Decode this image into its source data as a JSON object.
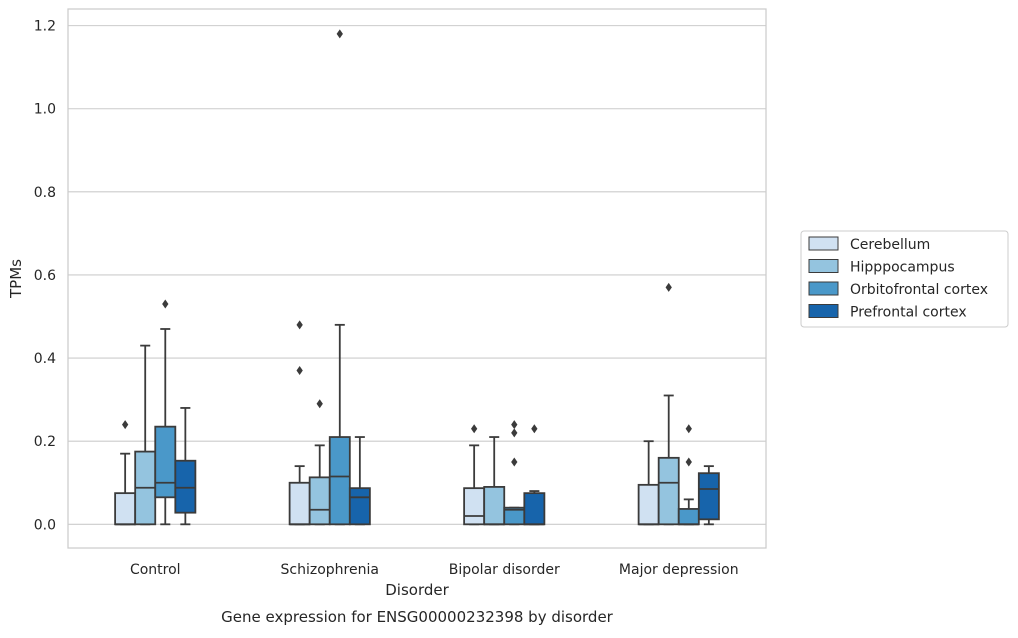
{
  "chart_data": {
    "type": "boxplot",
    "title": "",
    "caption": "Gene expression for ENSG00000232398 by disorder",
    "xlabel": "Disorder",
    "ylabel": "TPMs",
    "ylim": [
      -0.057,
      1.24
    ],
    "yticks": [
      "0.0",
      "0.2",
      "0.4",
      "0.6",
      "0.8",
      "1.0",
      "1.2"
    ],
    "ytick_values": [
      0.0,
      0.2,
      0.4,
      0.6,
      0.8,
      1.0,
      1.2
    ],
    "grid": "horizontal",
    "legend_position": "right",
    "categories": [
      "Control",
      "Schizophrenia",
      "Bipolar disorder",
      "Major depression"
    ],
    "series": [
      {
        "name": "Cerebellum",
        "color": "#d0e1f2",
        "boxes": [
          {
            "whisker_low": 0.0,
            "q1": 0.0,
            "median": 0.0,
            "q3": 0.075,
            "whisker_high": 0.17,
            "outliers": [
              0.24
            ]
          },
          {
            "whisker_low": 0.0,
            "q1": 0.0,
            "median": 0.0,
            "q3": 0.1,
            "whisker_high": 0.14,
            "outliers": [
              0.37,
              0.48
            ]
          },
          {
            "whisker_low": 0.0,
            "q1": 0.0,
            "median": 0.02,
            "q3": 0.087,
            "whisker_high": 0.19,
            "outliers": [
              0.23
            ]
          },
          {
            "whisker_low": 0.0,
            "q1": 0.0,
            "median": 0.0,
            "q3": 0.095,
            "whisker_high": 0.2,
            "outliers": []
          }
        ]
      },
      {
        "name": "Hipppocampus",
        "color": "#94c4df",
        "boxes": [
          {
            "whisker_low": 0.0,
            "q1": 0.0,
            "median": 0.088,
            "q3": 0.175,
            "whisker_high": 0.43,
            "outliers": []
          },
          {
            "whisker_low": 0.0,
            "q1": 0.0,
            "median": 0.035,
            "q3": 0.113,
            "whisker_high": 0.19,
            "outliers": [
              0.29
            ]
          },
          {
            "whisker_low": 0.0,
            "q1": 0.0,
            "median": 0.0,
            "q3": 0.09,
            "whisker_high": 0.21,
            "outliers": []
          },
          {
            "whisker_low": 0.0,
            "q1": 0.0,
            "median": 0.1,
            "q3": 0.16,
            "whisker_high": 0.31,
            "outliers": [
              0.57
            ]
          }
        ]
      },
      {
        "name": "Orbitofrontal cortex",
        "color": "#4a98c9",
        "boxes": [
          {
            "whisker_low": 0.0,
            "q1": 0.065,
            "median": 0.1,
            "q3": 0.235,
            "whisker_high": 0.47,
            "outliers": [
              0.53
            ]
          },
          {
            "whisker_low": 0.0,
            "q1": 0.0,
            "median": 0.115,
            "q3": 0.21,
            "whisker_high": 0.48,
            "outliers": [
              1.18
            ]
          },
          {
            "whisker_low": 0.0,
            "q1": 0.0,
            "median": 0.035,
            "q3": 0.04,
            "whisker_high": 0.04,
            "outliers": [
              0.15,
              0.22,
              0.24
            ]
          },
          {
            "whisker_low": 0.0,
            "q1": 0.0,
            "median": 0.0,
            "q3": 0.037,
            "whisker_high": 0.06,
            "outliers": [
              0.15,
              0.23
            ]
          }
        ]
      },
      {
        "name": "Prefrontal cortex",
        "color": "#1764ab",
        "boxes": [
          {
            "whisker_low": 0.0,
            "q1": 0.028,
            "median": 0.088,
            "q3": 0.153,
            "whisker_high": 0.28,
            "outliers": []
          },
          {
            "whisker_low": 0.0,
            "q1": 0.0,
            "median": 0.065,
            "q3": 0.087,
            "whisker_high": 0.21,
            "outliers": []
          },
          {
            "whisker_low": 0.0,
            "q1": 0.0,
            "median": 0.0,
            "q3": 0.075,
            "whisker_high": 0.08,
            "outliers": [
              0.23
            ]
          },
          {
            "whisker_low": 0.0,
            "q1": 0.012,
            "median": 0.085,
            "q3": 0.123,
            "whisker_high": 0.14,
            "outliers": []
          }
        ]
      }
    ]
  }
}
